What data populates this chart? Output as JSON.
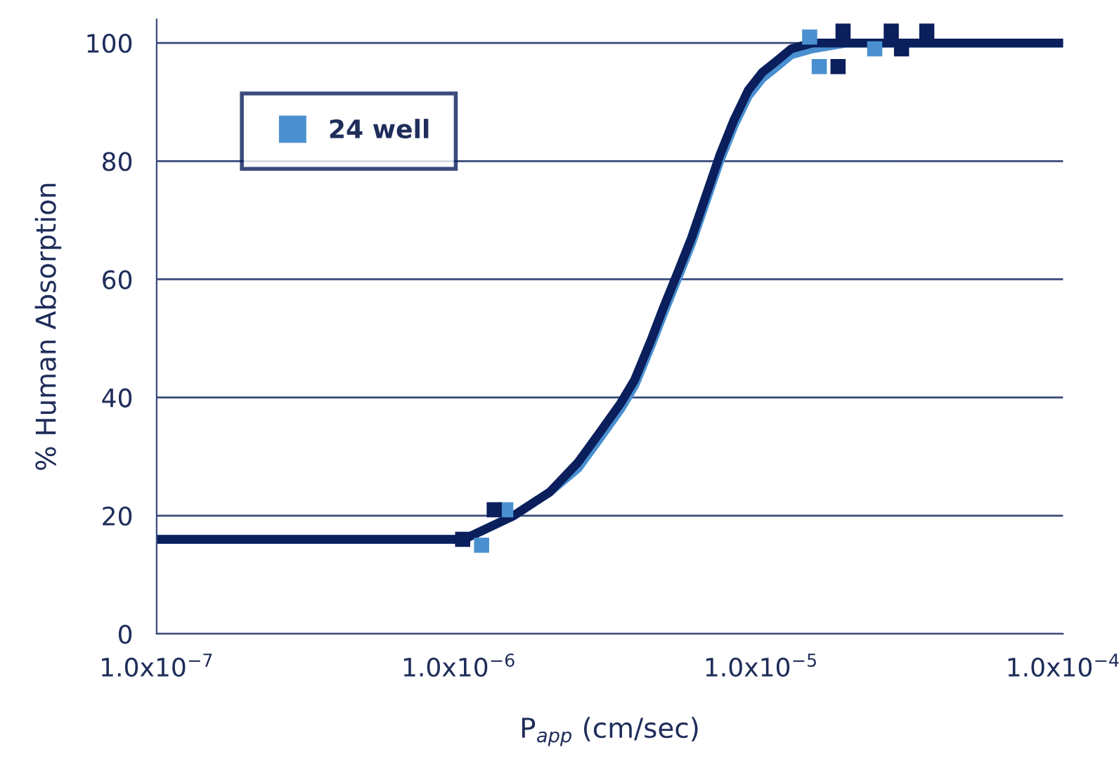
{
  "chart_data": {
    "type": "line",
    "xlabel": "P$_{app}$ (cm/sec)",
    "ylabel": "% Human Absorption",
    "log": "x",
    "xlim": [
      1e-07,
      0.0001
    ],
    "xticks": [
      {
        "value": 1e-07,
        "label": "1.0x10$^{−7}$"
      },
      {
        "value": 1e-06,
        "label": "1.0x10$^{−6}$"
      },
      {
        "value": 1e-05,
        "label": "1.0x10$^{−5}$"
      },
      {
        "value": 0.0001,
        "label": "1.0x10$^{−4}$"
      }
    ],
    "ylim": [
      0,
      104
    ],
    "yticks": [
      0,
      20,
      40,
      60,
      80,
      100
    ],
    "grid": "y",
    "legend": "top left",
    "series": [
      {
        "color": "#4a90d0",
        "x": [
          1e-07,
          1.04e-06,
          1.52e-06,
          2e-06,
          2.48e-06,
          2.92e-06,
          3.43e-06,
          3.82e-06,
          4.35e-06,
          4.74e-06,
          5.29e-06,
          5.89e-06,
          6.56e-06,
          7.31e-06,
          8.15e-06,
          9.08e-06,
          1.01e-05,
          1.13e-05,
          1.26e-05,
          1.48e-05,
          1.93e-05,
          0.0001
        ],
        "values": [
          16,
          16,
          20,
          24,
          28,
          33,
          38,
          42,
          49,
          54,
          60,
          66,
          73,
          80,
          86,
          91,
          94,
          96,
          98,
          99,
          100,
          100
        ]
      },
      {
        "color": "#0a1f5c",
        "x": [
          1e-07,
          1.04e-06,
          1.52e-06,
          2e-06,
          2.48e-06,
          2.92e-06,
          3.43e-06,
          3.82e-06,
          4.35e-06,
          4.74e-06,
          5.29e-06,
          5.89e-06,
          6.56e-06,
          7.31e-06,
          8.15e-06,
          9.08e-06,
          1.01e-05,
          1.13e-05,
          1.26e-05,
          1.48e-05,
          1.93e-05,
          0.0001
        ],
        "values": [
          16,
          16,
          20,
          24,
          29,
          34,
          39,
          43,
          50,
          55,
          61,
          67,
          74,
          81,
          87,
          92,
          95,
          97,
          99,
          100,
          100,
          100
        ]
      },
      {
        "type": "scatter",
        "name": "24 well",
        "color": "#4a90d0",
        "marker": "square",
        "x": [
          1.19e-06,
          1.43e-06,
          1.45e-05,
          1.56e-05,
          2.38e-05
        ],
        "values": [
          15,
          21,
          101,
          96,
          99
        ]
      },
      {
        "type": "scatter",
        "color": "#0a1f5c",
        "marker": "square",
        "x": [
          1.03e-06,
          1.31e-06,
          1.87e-05,
          1.8e-05,
          2.7e-05,
          2.92e-05,
          3.54e-05
        ],
        "values": [
          16,
          21,
          102,
          96,
          102,
          99,
          102
        ]
      }
    ]
  }
}
